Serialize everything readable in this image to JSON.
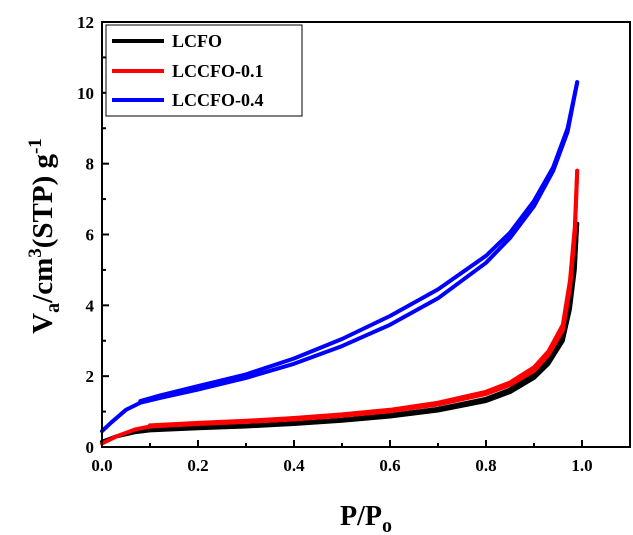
{
  "chart_data": {
    "type": "line",
    "xlabel": {
      "main": "P/P",
      "sub": "o"
    },
    "ylabel": {
      "main": "V",
      "sub": "a",
      "mid": "/cm",
      "sup": "3",
      "tail": "(STP) g",
      "sup2": "-1"
    },
    "xlim": [
      0.0,
      1.1
    ],
    "ylim": [
      0,
      12
    ],
    "xticks": [
      "0.0",
      "0.2",
      "0.4",
      "0.6",
      "0.8",
      "1.0"
    ],
    "yticks": [
      "0",
      "2",
      "4",
      "6",
      "8",
      "10",
      "12"
    ],
    "legend_position": "top-left",
    "series": [
      {
        "name": "LCFO",
        "color": "#000000",
        "adsorption": [
          [
            0.0,
            0.15
          ],
          [
            0.03,
            0.3
          ],
          [
            0.07,
            0.42
          ],
          [
            0.1,
            0.47
          ],
          [
            0.2,
            0.53
          ],
          [
            0.3,
            0.58
          ],
          [
            0.4,
            0.65
          ],
          [
            0.5,
            0.74
          ],
          [
            0.6,
            0.86
          ],
          [
            0.7,
            1.03
          ],
          [
            0.8,
            1.3
          ],
          [
            0.85,
            1.55
          ],
          [
            0.9,
            1.95
          ],
          [
            0.93,
            2.35
          ],
          [
            0.96,
            3.0
          ],
          [
            0.975,
            3.9
          ],
          [
            0.985,
            5.0
          ],
          [
            0.99,
            6.3
          ]
        ],
        "desorption": [
          [
            0.99,
            6.3
          ],
          [
            0.985,
            5.2
          ],
          [
            0.975,
            4.1
          ],
          [
            0.96,
            3.1
          ],
          [
            0.93,
            2.45
          ],
          [
            0.9,
            2.05
          ],
          [
            0.85,
            1.62
          ],
          [
            0.8,
            1.36
          ],
          [
            0.7,
            1.08
          ],
          [
            0.6,
            0.9
          ],
          [
            0.5,
            0.77
          ],
          [
            0.4,
            0.67
          ],
          [
            0.3,
            0.6
          ],
          [
            0.2,
            0.55
          ],
          [
            0.1,
            0.48
          ]
        ]
      },
      {
        "name": "LCCFO-0.1",
        "color": "#ff0000",
        "adsorption": [
          [
            0.0,
            0.1
          ],
          [
            0.03,
            0.3
          ],
          [
            0.07,
            0.5
          ],
          [
            0.1,
            0.58
          ],
          [
            0.2,
            0.65
          ],
          [
            0.3,
            0.71
          ],
          [
            0.4,
            0.78
          ],
          [
            0.5,
            0.88
          ],
          [
            0.6,
            1.01
          ],
          [
            0.7,
            1.2
          ],
          [
            0.8,
            1.5
          ],
          [
            0.85,
            1.75
          ],
          [
            0.9,
            2.15
          ],
          [
            0.93,
            2.6
          ],
          [
            0.96,
            3.3
          ],
          [
            0.975,
            4.5
          ],
          [
            0.985,
            6.0
          ],
          [
            0.99,
            7.8
          ]
        ],
        "desorption": [
          [
            0.99,
            7.8
          ],
          [
            0.985,
            6.2
          ],
          [
            0.975,
            4.7
          ],
          [
            0.96,
            3.45
          ],
          [
            0.93,
            2.7
          ],
          [
            0.9,
            2.25
          ],
          [
            0.85,
            1.82
          ],
          [
            0.8,
            1.56
          ],
          [
            0.7,
            1.25
          ],
          [
            0.6,
            1.05
          ],
          [
            0.5,
            0.92
          ],
          [
            0.4,
            0.82
          ],
          [
            0.3,
            0.74
          ],
          [
            0.2,
            0.68
          ],
          [
            0.1,
            0.61
          ]
        ]
      },
      {
        "name": "LCCFO-0.4",
        "color": "#0000ff",
        "adsorption": [
          [
            0.0,
            0.45
          ],
          [
            0.02,
            0.7
          ],
          [
            0.05,
            1.05
          ],
          [
            0.08,
            1.25
          ],
          [
            0.12,
            1.38
          ],
          [
            0.2,
            1.62
          ],
          [
            0.3,
            1.95
          ],
          [
            0.4,
            2.35
          ],
          [
            0.5,
            2.85
          ],
          [
            0.6,
            3.45
          ],
          [
            0.7,
            4.2
          ],
          [
            0.8,
            5.2
          ],
          [
            0.85,
            5.9
          ],
          [
            0.9,
            6.8
          ],
          [
            0.94,
            7.8
          ],
          [
            0.97,
            8.9
          ],
          [
            0.99,
            10.3
          ]
        ],
        "desorption": [
          [
            0.99,
            10.3
          ],
          [
            0.97,
            9.0
          ],
          [
            0.94,
            7.9
          ],
          [
            0.9,
            6.95
          ],
          [
            0.85,
            6.05
          ],
          [
            0.8,
            5.4
          ],
          [
            0.7,
            4.45
          ],
          [
            0.6,
            3.7
          ],
          [
            0.5,
            3.05
          ],
          [
            0.4,
            2.5
          ],
          [
            0.3,
            2.05
          ],
          [
            0.2,
            1.72
          ],
          [
            0.12,
            1.45
          ],
          [
            0.08,
            1.3
          ]
        ]
      }
    ]
  }
}
